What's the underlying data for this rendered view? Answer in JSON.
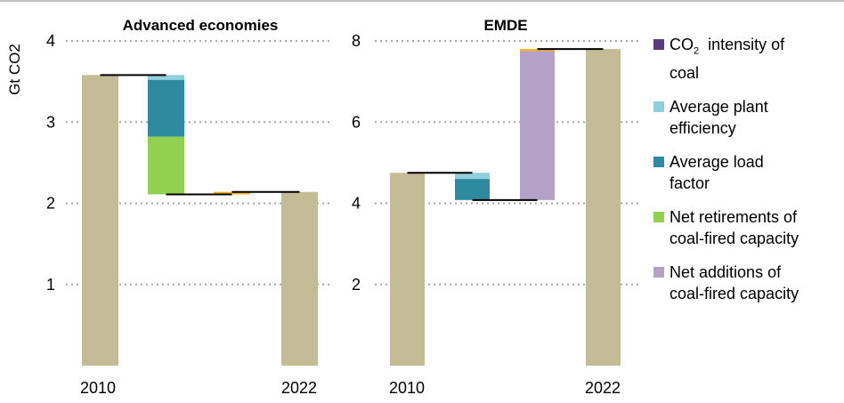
{
  "chart_data": [
    {
      "type": "bar",
      "title": "Advanced economies",
      "ylabel": "Gt CO2",
      "ylim": [
        0,
        4
      ],
      "yticks": [
        "1",
        "2",
        "3",
        "4"
      ],
      "xtick_labels": [
        "2010",
        "2022"
      ],
      "bars": [
        {
          "category": "2010",
          "kind": "total",
          "value": 3.58,
          "color": "#c4bc96"
        },
        {
          "category": "step",
          "kind": "change",
          "segments": [
            {
              "series": "Average plant efficiency",
              "from": 3.58,
              "to": 3.52
            },
            {
              "series": "Average load factor",
              "from": 3.52,
              "to": 2.82
            },
            {
              "series": "Net retirements of coal-fired capacity",
              "from": 2.82,
              "to": 2.11
            }
          ]
        },
        {
          "category": "step",
          "kind": "change",
          "segments": [
            {
              "series": "Net additions of coal-fired capacity",
              "from": 2.11,
              "to": 2.14
            }
          ]
        },
        {
          "category": "2022",
          "kind": "total",
          "value": 2.14,
          "color": "#c4bc96"
        }
      ],
      "connectors": [
        {
          "from_bar": 0,
          "to_bar": 1,
          "value": 3.58
        },
        {
          "from_bar": 1,
          "to_bar": 2,
          "value": 2.11
        },
        {
          "from_bar": 2,
          "to_bar": 3,
          "value": 2.14
        }
      ]
    },
    {
      "type": "bar",
      "title": "EMDE",
      "ylim": [
        0,
        8
      ],
      "yticks": [
        "2",
        "4",
        "6",
        "8"
      ],
      "xtick_labels": [
        "2010",
        "2022"
      ],
      "bars": [
        {
          "category": "2010",
          "kind": "total",
          "value": 4.75,
          "color": "#c4bc96"
        },
        {
          "category": "step",
          "kind": "change",
          "segments": [
            {
              "series": "Average plant efficiency",
              "from": 4.75,
              "to": 4.6
            },
            {
              "series": "Average load factor",
              "from": 4.6,
              "to": 4.08
            }
          ]
        },
        {
          "category": "step",
          "kind": "change",
          "segments": [
            {
              "series": "Net additions of coal-fired capacity",
              "from": 4.08,
              "to": 7.75
            },
            {
              "series": "CO2 intensity of coal",
              "from": 7.75,
              "to": 7.8
            }
          ]
        },
        {
          "category": "2022",
          "kind": "total",
          "value": 7.8,
          "color": "#c4bc96"
        }
      ],
      "connectors": [
        {
          "from_bar": 0,
          "to_bar": 1,
          "value": 4.75
        },
        {
          "from_bar": 1,
          "to_bar": 2,
          "value": 4.08
        },
        {
          "from_bar": 2,
          "to_bar": 3,
          "value": 7.8
        }
      ]
    }
  ],
  "legend": {
    "items": [
      {
        "name": "CO2 intensity of coal",
        "line1": "intensity of",
        "line2": "coal",
        "color": "#5a3d7a"
      },
      {
        "name": "Average plant efficiency",
        "line1": "Average plant",
        "line2": "efficiency",
        "color": "#8fd0dc"
      },
      {
        "name": "Average load factor",
        "line1": "Average load",
        "line2": "factor",
        "color": "#2e8a9e"
      },
      {
        "name": "Net retirements of coal-fired capacity",
        "line1": "Net retirements of",
        "line2": "coal-fired capacity",
        "color": "#92d050"
      },
      {
        "name": "Net additions of coal-fired capacity",
        "line1": "Net additions of",
        "line2": "coal-fired capacity",
        "color": "#b3a1c8"
      }
    ],
    "co2_text": "CO",
    "co2_sub": "2"
  },
  "colors": {
    "accent_small": "#f2b319",
    "connector": "#000000",
    "gridline": "#a6a6a6"
  }
}
